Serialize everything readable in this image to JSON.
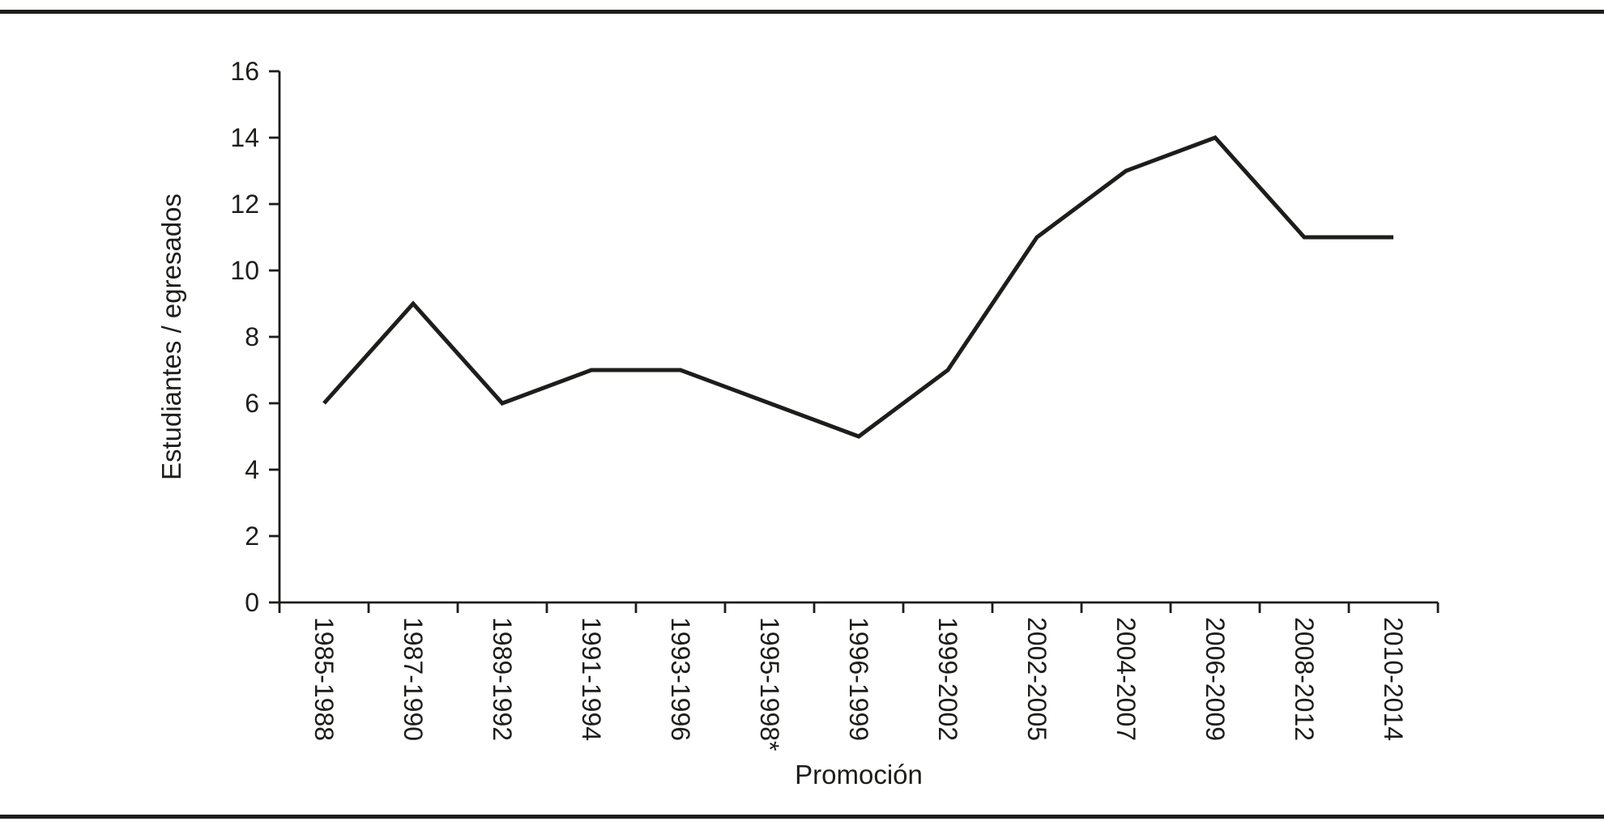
{
  "chart_data": {
    "type": "line",
    "title": "",
    "categories": [
      "1985-1988",
      "1987-1990",
      "1989-1992",
      "1991-1994",
      "1993-1996",
      "1995-1998*",
      "1996-1999",
      "1999-2002",
      "2002-2005",
      "2004-2007",
      "2006-2009",
      "2008-2012",
      "2010-2014"
    ],
    "values": [
      6,
      9,
      6,
      7,
      7,
      6,
      5,
      7,
      11,
      13,
      14,
      11,
      11
    ],
    "xlabel": "Promoción",
    "ylabel": "Estudiantes / egresados",
    "ylim": [
      0,
      16
    ],
    "yticks": [
      0,
      2,
      4,
      6,
      8,
      10,
      12,
      14,
      16
    ],
    "grid": false,
    "legend": "none",
    "line_color": "#1d1d1b",
    "axis_color": "#1d1d1b",
    "background_color": "#ffffff",
    "frame_rule_color": "#1d1d1b"
  }
}
